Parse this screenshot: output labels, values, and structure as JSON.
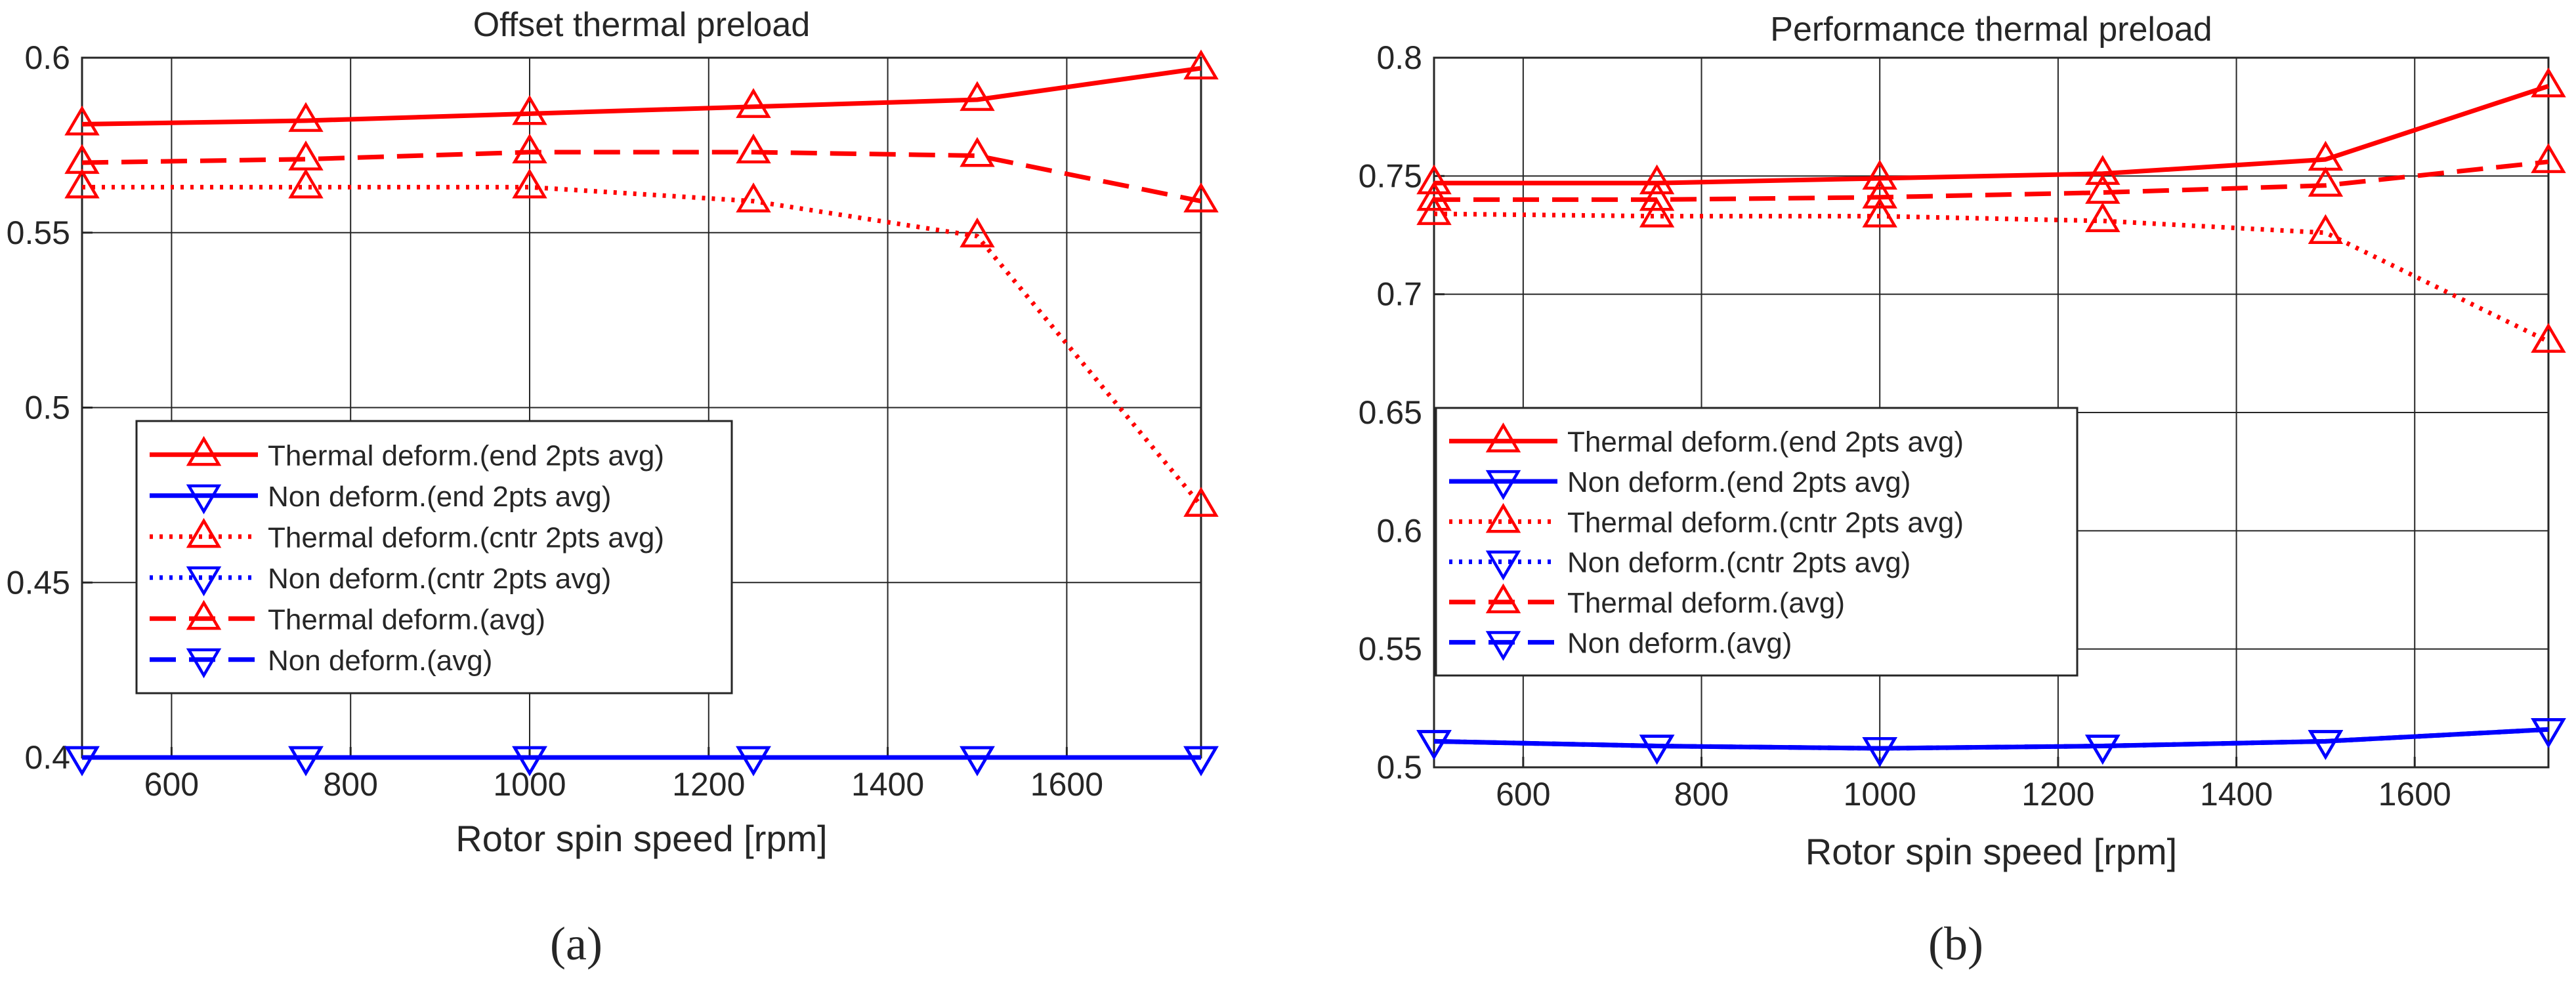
{
  "figure": {
    "panel_labels": [
      "(a)",
      "(b)"
    ]
  },
  "legend_entries": [
    {
      "label": "Thermal deform.(end 2pts avg)",
      "color": "#ff0000",
      "dash": "solid",
      "marker": "triangle-up"
    },
    {
      "label": "Non deform.(end 2pts avg)",
      "color": "#0000ff",
      "dash": "solid",
      "marker": "triangle-down"
    },
    {
      "label": "Thermal deform.(cntr 2pts avg)",
      "color": "#ff0000",
      "dash": "dotted",
      "marker": "triangle-up"
    },
    {
      "label": "Non deform.(cntr 2pts avg)",
      "color": "#0000ff",
      "dash": "dotted",
      "marker": "triangle-down"
    },
    {
      "label": "Thermal deform.(avg)",
      "color": "#ff0000",
      "dash": "dashed",
      "marker": "triangle-up"
    },
    {
      "label": "Non deform.(avg)",
      "color": "#0000ff",
      "dash": "dashed",
      "marker": "triangle-down"
    }
  ],
  "chart_data": [
    {
      "type": "line",
      "panel": "(a)",
      "title": "Offset thermal preload",
      "xlabel": "Rotor spin speed [rpm]",
      "ylabel": "",
      "xlim": [
        500,
        1750
      ],
      "ylim": [
        0.4,
        0.6
      ],
      "xticks": [
        600,
        800,
        1000,
        1200,
        1400,
        1600
      ],
      "yticks": [
        0.4,
        0.45,
        0.5,
        0.55,
        0.6
      ],
      "xtick_labels": [
        "600",
        "800",
        "1000",
        "1200",
        "1400",
        "1600"
      ],
      "ytick_labels": [
        "0.4",
        "0.45",
        "0.5",
        "0.55",
        "0.6"
      ],
      "grid": true,
      "legend_position": "center-left",
      "x": [
        500,
        750,
        1000,
        1250,
        1500,
        1750
      ],
      "series": [
        {
          "name": "Thermal deform.(end 2pts avg)",
          "values": [
            0.581,
            0.582,
            0.584,
            0.586,
            0.588,
            0.597
          ]
        },
        {
          "name": "Non deform.(end 2pts avg)",
          "values": [
            0.4,
            0.4,
            0.4,
            0.4,
            0.4,
            0.4
          ]
        },
        {
          "name": "Thermal deform.(cntr 2pts avg)",
          "values": [
            0.563,
            0.563,
            0.563,
            0.559,
            0.549,
            0.472
          ]
        },
        {
          "name": "Non deform.(cntr 2pts avg)",
          "values": [
            0.4,
            0.4,
            0.4,
            0.4,
            0.4,
            0.4
          ]
        },
        {
          "name": "Thermal deform.(avg)",
          "values": [
            0.57,
            0.571,
            0.573,
            0.573,
            0.572,
            0.559
          ]
        },
        {
          "name": "Non deform.(avg)",
          "values": [
            0.4,
            0.4,
            0.4,
            0.4,
            0.4,
            0.4
          ]
        }
      ]
    },
    {
      "type": "line",
      "panel": "(b)",
      "title": "Performance thermal preload",
      "xlabel": "Rotor spin speed [rpm]",
      "ylabel": "",
      "xlim": [
        500,
        1750
      ],
      "ylim": [
        0.5,
        0.8
      ],
      "xticks": [
        600,
        800,
        1000,
        1200,
        1400,
        1600
      ],
      "yticks": [
        0.5,
        0.55,
        0.6,
        0.65,
        0.7,
        0.75,
        0.8
      ],
      "xtick_labels": [
        "600",
        "800",
        "1000",
        "1200",
        "1400",
        "1600"
      ],
      "ytick_labels": [
        "0.5",
        "0.55",
        "0.6",
        "0.65",
        "0.7",
        "0.75",
        "0.8"
      ],
      "grid": true,
      "legend_position": "center-left",
      "x": [
        500,
        750,
        1000,
        1250,
        1500,
        1750
      ],
      "series": [
        {
          "name": "Thermal deform.(end 2pts avg)",
          "values": [
            0.747,
            0.747,
            0.749,
            0.751,
            0.757,
            0.788
          ]
        },
        {
          "name": "Non deform.(end 2pts avg)",
          "values": [
            0.511,
            0.509,
            0.508,
            0.509,
            0.511,
            0.516
          ]
        },
        {
          "name": "Thermal deform.(cntr 2pts avg)",
          "values": [
            0.734,
            0.733,
            0.733,
            0.731,
            0.726,
            0.68
          ]
        },
        {
          "name": "Non deform.(cntr 2pts avg)",
          "values": [
            0.511,
            0.509,
            0.508,
            0.509,
            0.511,
            0.516
          ]
        },
        {
          "name": "Thermal deform.(avg)",
          "values": [
            0.74,
            0.74,
            0.741,
            0.743,
            0.746,
            0.756
          ]
        },
        {
          "name": "Non deform.(avg)",
          "values": [
            0.511,
            0.509,
            0.508,
            0.509,
            0.511,
            0.516
          ]
        }
      ]
    }
  ]
}
